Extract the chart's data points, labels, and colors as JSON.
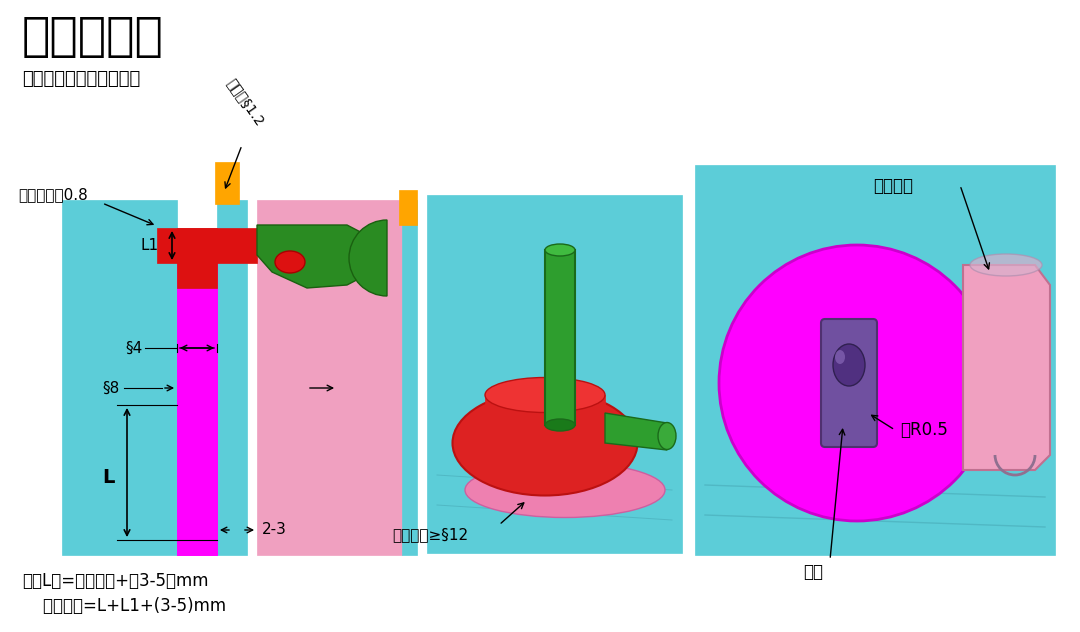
{
  "title": "牛角潜骨位",
  "subtitle": "牛角潜骨位形式结构如下",
  "note_line1": "注：L値=牛角线长+（3-5）mm",
  "note_line2": "    顶针行程=L+L1+(3-5)mm",
  "label_thickness": "吸盘片厚度0.8",
  "label_gate": "进胶口§1.2",
  "label_phi4": "§4",
  "label_phi8": "§8",
  "label_L1": "L1",
  "label_L": "L",
  "label_23": "2-3",
  "label_suction": "吸盘范围≥§12",
  "label_bend": "利于折弯",
  "label_stop": "止转",
  "label_radius": "倒R0.5",
  "bg_color": "#ffffff",
  "cyan_color": "#5CCDD8",
  "magenta_color": "#FF00FF",
  "pink_color": "#F0A0C0",
  "green_color": "#2A8B2A",
  "red_color": "#DD1111",
  "orange_color": "#FFA500",
  "dark_green": "#1A6B1A",
  "light_cyan": "#A0E8F0"
}
